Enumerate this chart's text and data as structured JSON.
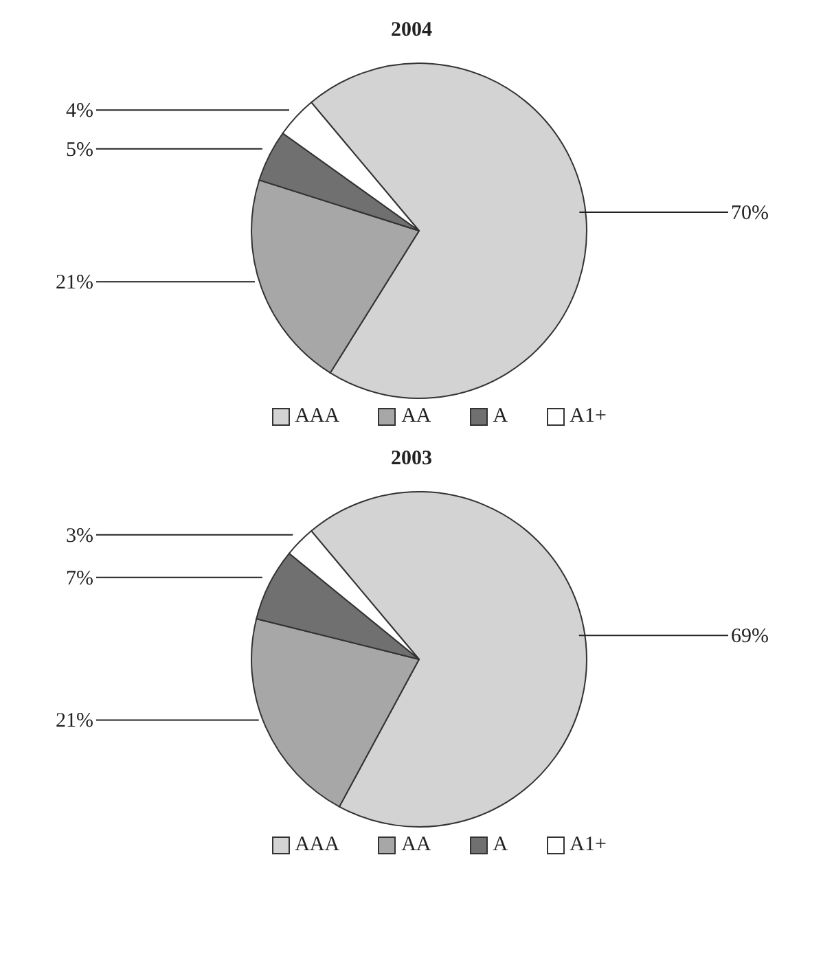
{
  "chart_data": [
    {
      "type": "pie",
      "title": "2004",
      "categories": [
        "AAA",
        "AA",
        "A",
        "A1+"
      ],
      "values": [
        70,
        21,
        5,
        4
      ],
      "colors": [
        "#d3d3d3",
        "#a7a7a7",
        "#707070",
        "#ffffff"
      ],
      "value_labels": [
        "70%",
        "21%",
        "5%",
        "4%"
      ],
      "legend": "bottom"
    },
    {
      "type": "pie",
      "title": "2003",
      "categories": [
        "AAA",
        "AA",
        "A",
        "A1+"
      ],
      "values": [
        69,
        21,
        7,
        3
      ],
      "colors": [
        "#d3d3d3",
        "#a7a7a7",
        "#707070",
        "#ffffff"
      ],
      "value_labels": [
        "69%",
        "21%",
        "7%",
        "3%"
      ],
      "legend": "bottom"
    }
  ]
}
